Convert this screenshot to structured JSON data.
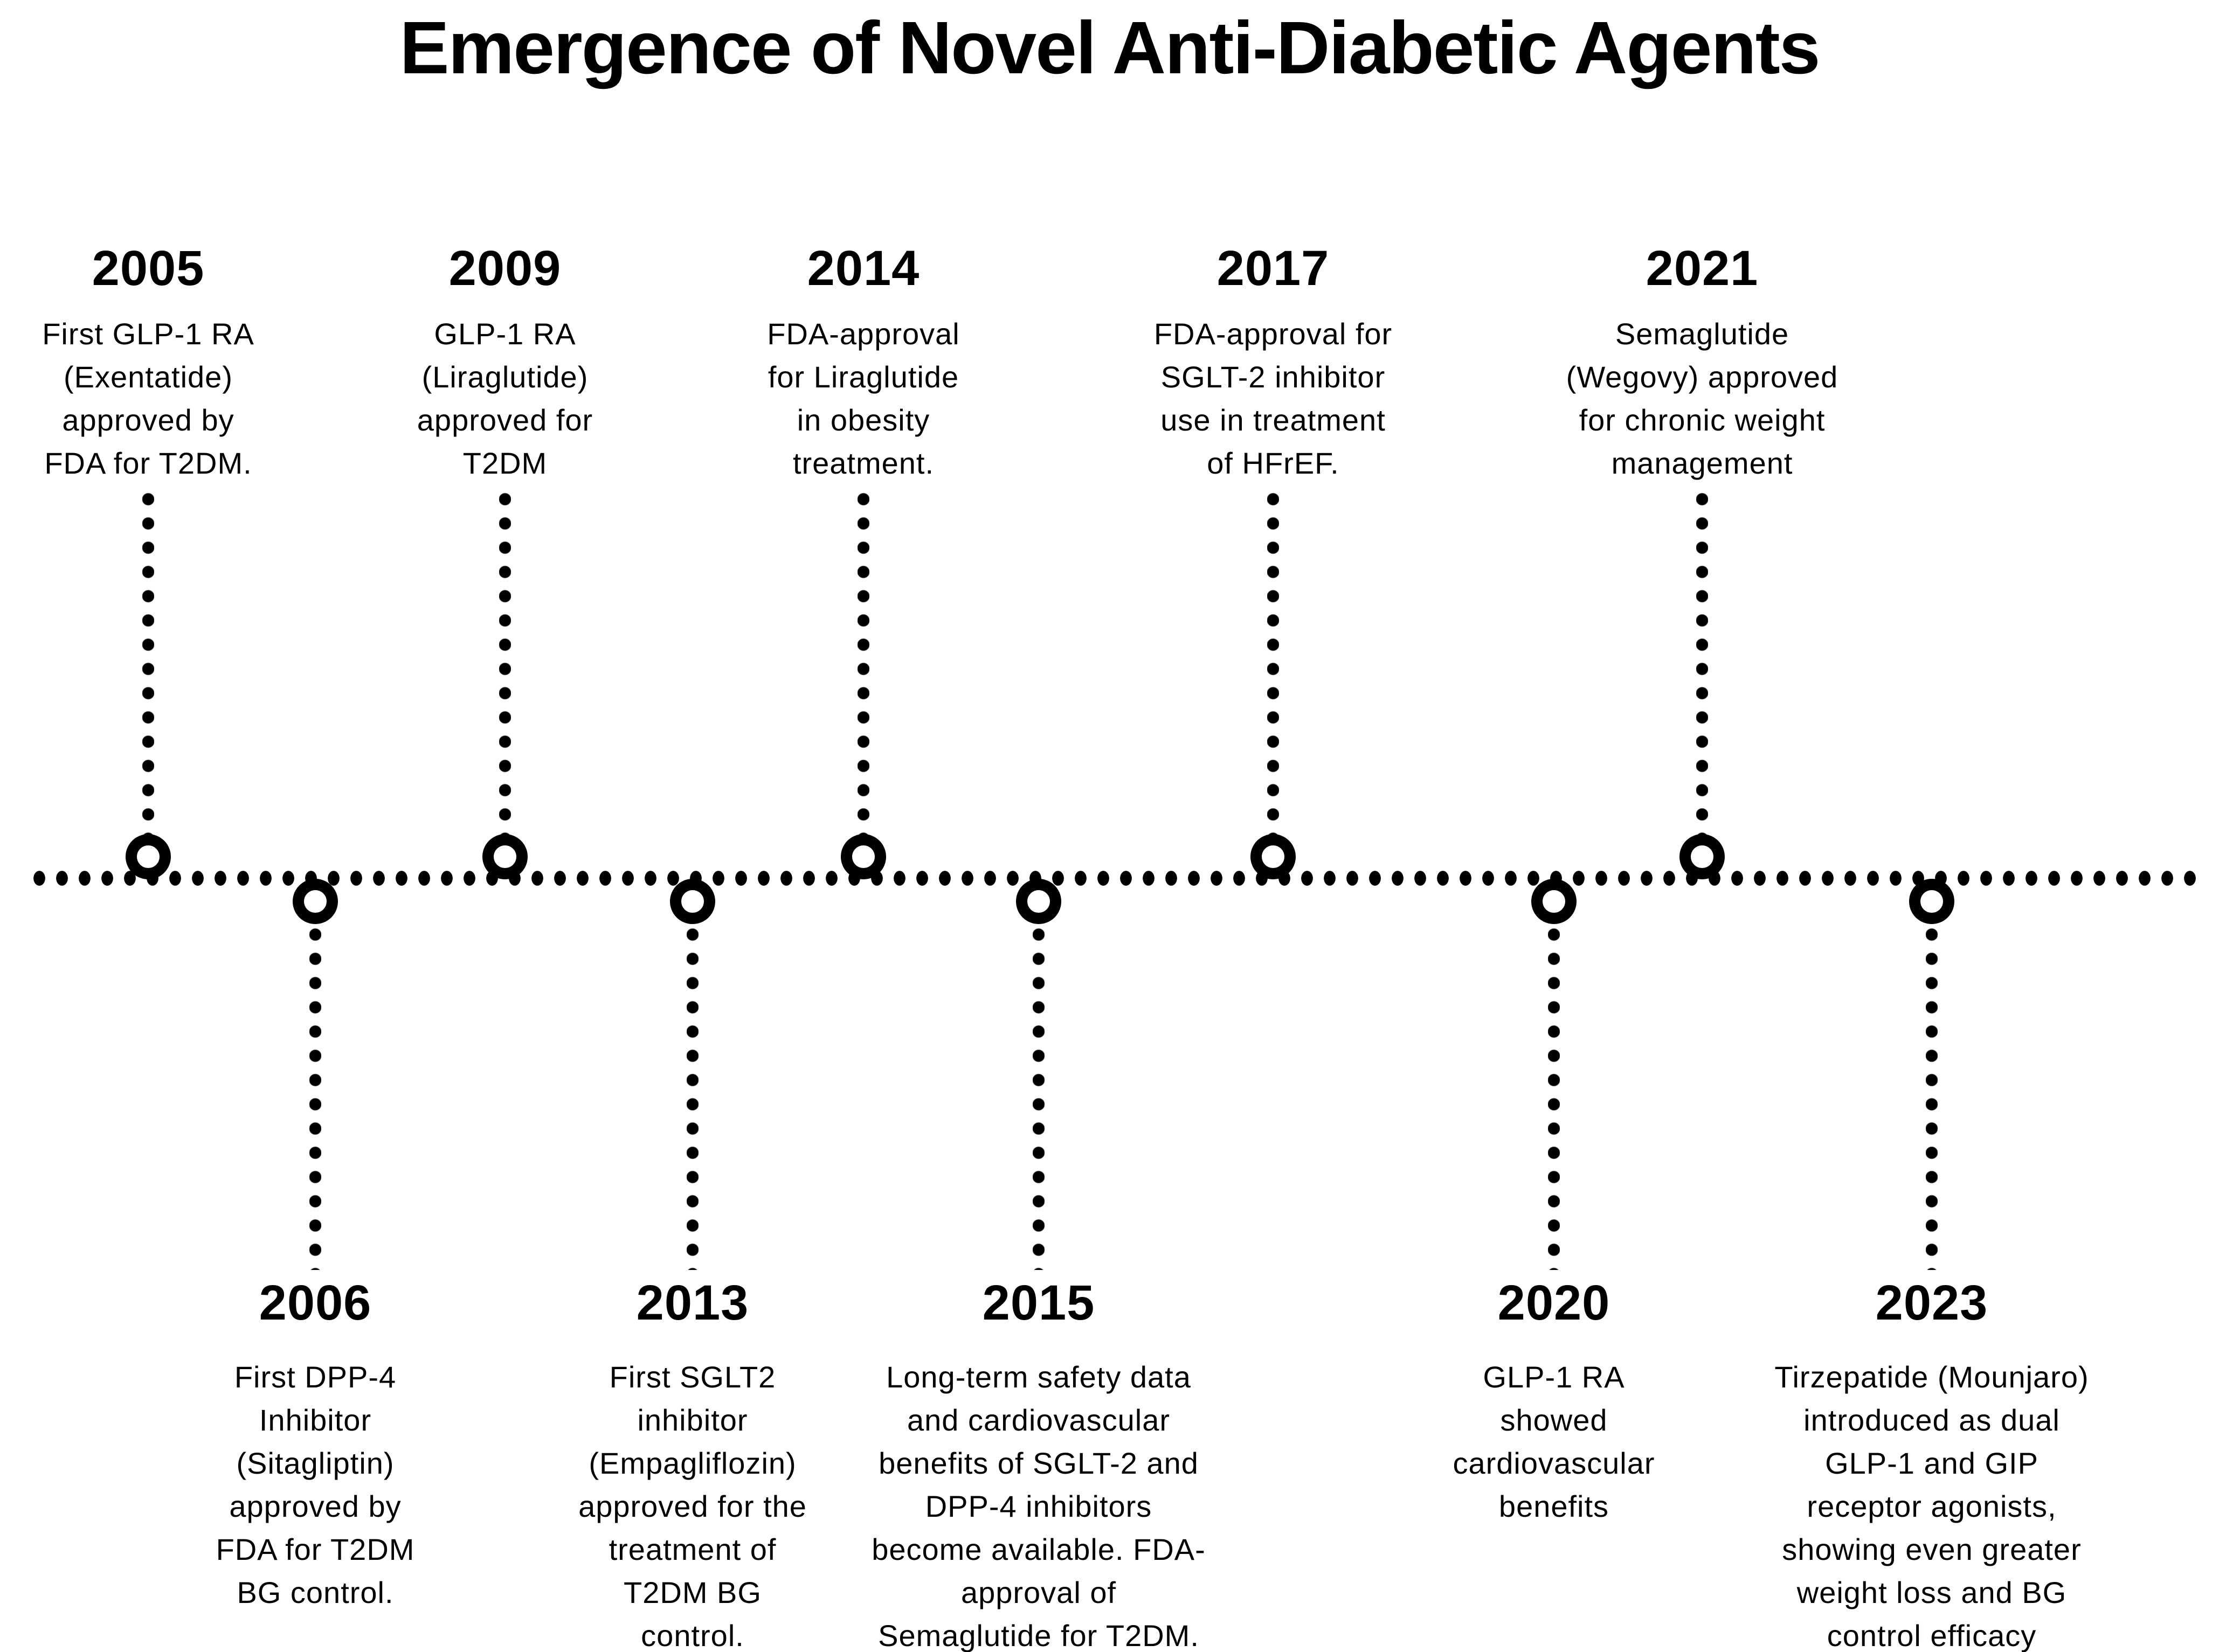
{
  "title": "Emergence of Novel Anti-Diabetic Agents",
  "colors": {
    "ink": "#000000",
    "background": "#ffffff"
  },
  "timeline": {
    "events": [
      {
        "year": "2005",
        "side": "top",
        "text": "First GLP-1 RA\n(Exentatide)\napproved by\nFDA for T2DM."
      },
      {
        "year": "2006",
        "side": "bottom",
        "text": "First DPP-4\nInhibitor\n(Sitagliptin)\napproved by\nFDA for T2DM\nBG control."
      },
      {
        "year": "2009",
        "side": "top",
        "text": "GLP-1 RA\n(Liraglutide)\napproved for\nT2DM"
      },
      {
        "year": "2013",
        "side": "bottom",
        "text": "First SGLT2\ninhibitor\n(Empagliflozin)\napproved for the\ntreatment of\nT2DM BG\ncontrol."
      },
      {
        "year": "2014",
        "side": "top",
        "text": "FDA-approval\nfor Liraglutide\nin obesity\ntreatment."
      },
      {
        "year": "2015",
        "side": "bottom",
        "text": "Long-term safety data\nand cardiovascular\nbenefits of SGLT-2 and\nDPP-4 inhibitors\nbecome available. FDA-\napproval of\nSemaglutide for T2DM."
      },
      {
        "year": "2017",
        "side": "top",
        "text": "FDA-approval for\nSGLT-2 inhibitor\nuse in treatment\nof HFrEF."
      },
      {
        "year": "2020",
        "side": "bottom",
        "text": "GLP-1 RA\nshowed\ncardiovascular\nbenefits"
      },
      {
        "year": "2021",
        "side": "top",
        "text": "Semaglutide\n(Wegovy) approved\nfor chronic weight\nmanagement"
      },
      {
        "year": "2023",
        "side": "bottom",
        "text": "Tirzepatide (Mounjaro)\nintroduced as dual\nGLP-1 and GIP\nreceptor agonists,\nshowing even greater\nweight loss and BG\ncontrol efficacy"
      }
    ]
  }
}
